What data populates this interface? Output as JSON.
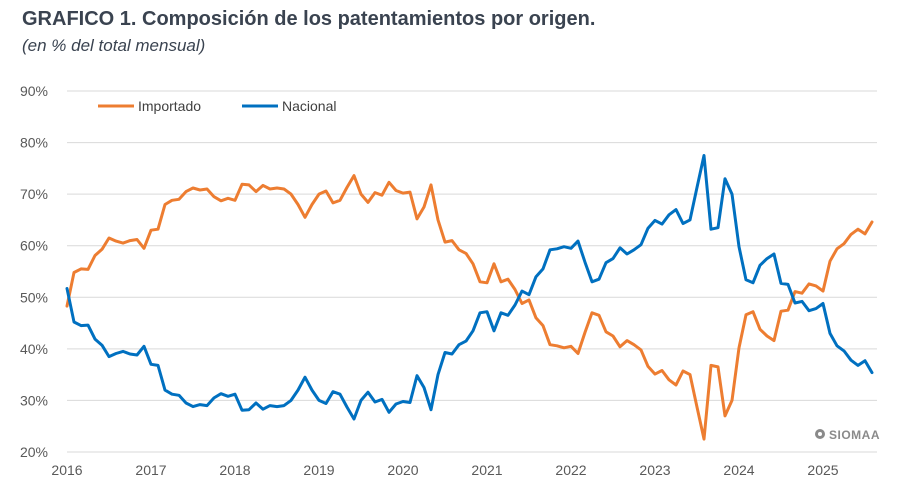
{
  "title": "GRAFICO 1. Composición de los patentamientos por origen.",
  "subtitle": "(en % del total mensual)",
  "watermark": "SIOMAA",
  "chart_data": {
    "type": "line",
    "title": "GRAFICO 1. Composición de los patentamientos por origen.",
    "subtitle": "(en % del total mensual)",
    "xlabel": "",
    "ylabel": "",
    "ylim": [
      20,
      90
    ],
    "y_ticks": [
      20,
      30,
      40,
      50,
      60,
      70,
      80,
      90
    ],
    "y_tick_labels": [
      "20%",
      "30%",
      "40%",
      "50%",
      "60%",
      "70%",
      "80%",
      "90%"
    ],
    "x_ticks": [
      2016,
      2017,
      2018,
      2019,
      2020,
      2021,
      2022,
      2023,
      2024,
      2025
    ],
    "x_tick_labels": [
      "2016",
      "2017",
      "2018",
      "2019",
      "2020",
      "2021",
      "2022",
      "2023",
      "2024",
      "2025"
    ],
    "x_start_year": 2016,
    "frequency": "monthly",
    "grid": "horizontal",
    "legend_position": "top-left",
    "colors": {
      "Importado": "#ED7D31",
      "Nacional": "#0070C0",
      "grid": "#d9d9d9",
      "text": "#595959"
    },
    "series": [
      {
        "name": "Importado",
        "color": "#ED7D31",
        "values": [
          48.3,
          54.8,
          55.5,
          55.4,
          58.1,
          59.3,
          61.5,
          60.9,
          60.5,
          61.0,
          61.2,
          59.5,
          63.0,
          63.2,
          68.0,
          68.8,
          69.0,
          70.5,
          71.2,
          70.8,
          71.0,
          69.5,
          68.7,
          69.2,
          68.8,
          71.9,
          71.8,
          70.5,
          71.7,
          71.0,
          71.2,
          71.0,
          70.0,
          68.0,
          65.5,
          68.0,
          70.0,
          70.6,
          68.3,
          68.8,
          71.3,
          73.6,
          70.0,
          68.4,
          70.3,
          69.8,
          72.3,
          70.7,
          70.2,
          70.4,
          65.2,
          67.5,
          71.8,
          65.0,
          60.7,
          61.0,
          59.2,
          58.5,
          56.5,
          53.0,
          52.8,
          56.5,
          53.0,
          53.5,
          51.5,
          48.8,
          49.5,
          46.0,
          44.5,
          40.8,
          40.6,
          40.2,
          40.5,
          39.1,
          43.2,
          47.0,
          46.5,
          43.3,
          42.5,
          40.4,
          41.6,
          40.8,
          39.8,
          36.6,
          35.1,
          35.8,
          34.0,
          33.0,
          35.7,
          35.0,
          28.7,
          22.5,
          36.8,
          36.5,
          27.0,
          30.0,
          40.2,
          46.6,
          47.2,
          43.8,
          42.5,
          41.6,
          47.3,
          47.5,
          51.1,
          50.8,
          52.6,
          52.2,
          51.2,
          57.0,
          59.4,
          60.4,
          62.2,
          63.2,
          62.3,
          64.6
        ]
      },
      {
        "name": "Nacional",
        "color": "#0070C0",
        "values": [
          51.7,
          45.2,
          44.5,
          44.6,
          41.9,
          40.7,
          38.5,
          39.1,
          39.5,
          39.0,
          38.8,
          40.5,
          37.0,
          36.8,
          32.0,
          31.2,
          31.0,
          29.5,
          28.8,
          29.2,
          29.0,
          30.5,
          31.3,
          30.8,
          31.2,
          28.1,
          28.2,
          29.5,
          28.3,
          29.0,
          28.8,
          29.0,
          30.0,
          32.0,
          34.5,
          32.0,
          30.0,
          29.4,
          31.7,
          31.2,
          28.7,
          26.4,
          30.0,
          31.6,
          29.7,
          30.2,
          27.7,
          29.3,
          29.8,
          29.6,
          34.8,
          32.5,
          28.2,
          35.0,
          39.3,
          39.0,
          40.8,
          41.5,
          43.5,
          47.0,
          47.2,
          43.5,
          47.0,
          46.5,
          48.5,
          51.2,
          50.5,
          54.0,
          55.5,
          59.2,
          59.4,
          59.8,
          59.5,
          60.9,
          56.8,
          53.0,
          53.5,
          56.7,
          57.5,
          59.6,
          58.4,
          59.2,
          60.2,
          63.4,
          64.9,
          64.2,
          66.0,
          67.0,
          64.3,
          65.0,
          71.3,
          77.5,
          63.2,
          63.5,
          73.0,
          70.0,
          59.8,
          53.4,
          52.8,
          56.2,
          57.5,
          58.4,
          52.7,
          52.5,
          48.9,
          49.2,
          47.4,
          47.8,
          48.8,
          43.0,
          40.6,
          39.6,
          37.8,
          36.8,
          37.7,
          35.4
        ]
      }
    ]
  }
}
